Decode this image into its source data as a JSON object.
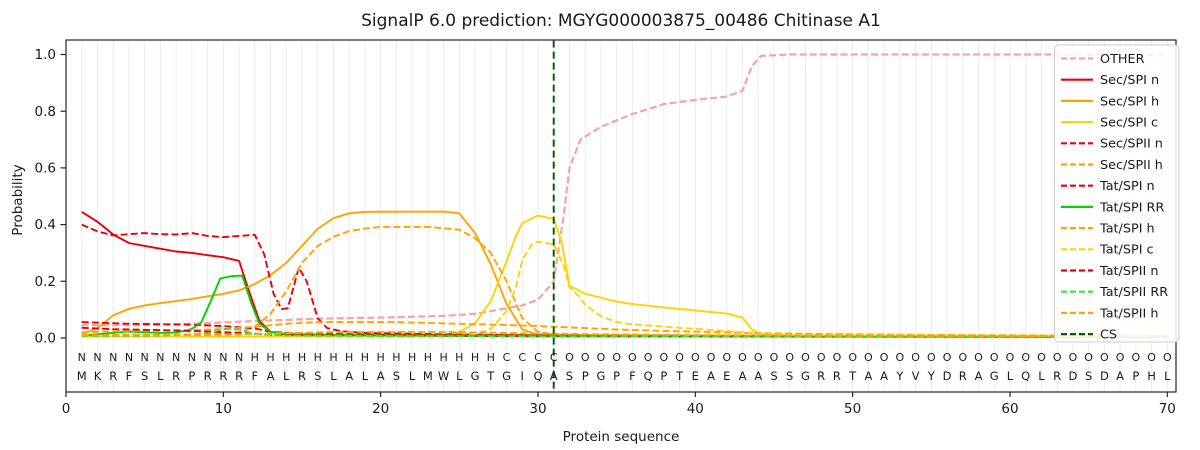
{
  "figure": {
    "title": "SignalP 6.0 prediction: MGYG000003875_00486 Chitinase A1",
    "xlabel": "Protein sequence",
    "ylabel": "Probability"
  },
  "chart_data": {
    "type": "line",
    "title": "SignalP 6.0 prediction: MGYG000003875_00486 Chitinase A1",
    "xlabel": "Protein sequence",
    "ylabel": "Probability",
    "xlim": [
      0,
      70.5
    ],
    "ylim": [
      0.0,
      1.0
    ],
    "xticks": [
      0,
      10,
      20,
      30,
      40,
      50,
      60,
      70
    ],
    "yticks": [
      "0.0",
      "0.2",
      "0.4",
      "0.6",
      "0.8",
      "1.0"
    ],
    "grid": "vertical line per residue, light gray",
    "legend_position": "upper right",
    "cs_position": 31,
    "sequence": "MKRFSLRPRRRFALRSLALASLMWLGTGIQASPGPFQPTEAEAASSGRRTAAYVYDRAGLQLRDSDAPHL",
    "regions": [
      {
        "label": "N",
        "start": 1,
        "end": 11,
        "color": "#e8000b"
      },
      {
        "label": "H",
        "start": 12,
        "end": 27,
        "color": "#ffa300"
      },
      {
        "label": "C",
        "start": 28,
        "end": 31,
        "color": "#ffd300"
      },
      {
        "label": "O",
        "start": 32,
        "end": 70,
        "color": "#8f8f8f"
      }
    ],
    "sequence_color": "#3c3c3c",
    "series": [
      {
        "name": "OTHER",
        "color": "#f4a4a4",
        "dash": true,
        "width": 2.2,
        "points": [
          [
            1,
            0.045
          ],
          [
            4,
            0.045
          ],
          [
            8,
            0.05
          ],
          [
            12,
            0.06
          ],
          [
            16,
            0.068
          ],
          [
            20,
            0.072
          ],
          [
            24,
            0.078
          ],
          [
            26,
            0.085
          ],
          [
            28,
            0.105
          ],
          [
            29,
            0.115
          ],
          [
            30,
            0.135
          ],
          [
            31,
            0.2
          ],
          [
            31.6,
            0.42
          ],
          [
            32,
            0.6
          ],
          [
            32.7,
            0.7
          ],
          [
            34,
            0.745
          ],
          [
            36,
            0.79
          ],
          [
            38,
            0.825
          ],
          [
            40,
            0.84
          ],
          [
            42,
            0.852
          ],
          [
            43,
            0.872
          ],
          [
            43.6,
            0.96
          ],
          [
            44.2,
            0.995
          ],
          [
            46,
            1.0
          ],
          [
            70,
            1.0
          ]
        ]
      },
      {
        "name": "Sec/SPI n",
        "color": "#e8000b",
        "dash": false,
        "width": 1.9,
        "points": [
          [
            1,
            0.445
          ],
          [
            2,
            0.41
          ],
          [
            3,
            0.365
          ],
          [
            4,
            0.335
          ],
          [
            5,
            0.325
          ],
          [
            6,
            0.315
          ],
          [
            7,
            0.305
          ],
          [
            8,
            0.3
          ],
          [
            9,
            0.292
          ],
          [
            10,
            0.285
          ],
          [
            11,
            0.272
          ],
          [
            11.6,
            0.17
          ],
          [
            12.3,
            0.06
          ],
          [
            13,
            0.022
          ],
          [
            14,
            0.012
          ],
          [
            18,
            0.008
          ],
          [
            30,
            0.006
          ],
          [
            70,
            0.004
          ]
        ]
      },
      {
        "name": "Sec/SPI h",
        "color": "#ffa300",
        "dash": false,
        "width": 1.9,
        "points": [
          [
            1,
            0.012
          ],
          [
            2,
            0.035
          ],
          [
            3,
            0.08
          ],
          [
            4,
            0.103
          ],
          [
            5,
            0.115
          ],
          [
            6,
            0.123
          ],
          [
            7,
            0.13
          ],
          [
            8,
            0.138
          ],
          [
            9,
            0.147
          ],
          [
            10,
            0.156
          ],
          [
            11,
            0.168
          ],
          [
            12,
            0.19
          ],
          [
            13,
            0.222
          ],
          [
            14,
            0.265
          ],
          [
            15,
            0.325
          ],
          [
            16,
            0.385
          ],
          [
            17,
            0.423
          ],
          [
            18,
            0.44
          ],
          [
            19,
            0.445
          ],
          [
            24,
            0.446
          ],
          [
            25,
            0.44
          ],
          [
            26,
            0.37
          ],
          [
            27,
            0.26
          ],
          [
            28,
            0.12
          ],
          [
            29,
            0.03
          ],
          [
            30,
            0.012
          ],
          [
            33,
            0.008
          ],
          [
            70,
            0.005
          ]
        ]
      },
      {
        "name": "Sec/SPI c",
        "color": "#ffd300",
        "dash": false,
        "width": 1.9,
        "points": [
          [
            1,
            0.005
          ],
          [
            22,
            0.005
          ],
          [
            24,
            0.01
          ],
          [
            25,
            0.022
          ],
          [
            26,
            0.052
          ],
          [
            27,
            0.13
          ],
          [
            28,
            0.27
          ],
          [
            28.6,
            0.36
          ],
          [
            29,
            0.405
          ],
          [
            30,
            0.432
          ],
          [
            31,
            0.42
          ],
          [
            31.5,
            0.34
          ],
          [
            32,
            0.185
          ],
          [
            33,
            0.156
          ],
          [
            34,
            0.142
          ],
          [
            35,
            0.128
          ],
          [
            36,
            0.12
          ],
          [
            38,
            0.108
          ],
          [
            40,
            0.097
          ],
          [
            42,
            0.086
          ],
          [
            43,
            0.072
          ],
          [
            43.6,
            0.03
          ],
          [
            44.2,
            0.012
          ],
          [
            46,
            0.008
          ],
          [
            70,
            0.007
          ]
        ]
      },
      {
        "name": "Sec/SPII n",
        "color": "#e8000b",
        "dash": true,
        "width": 1.9,
        "points": [
          [
            1,
            0.4
          ],
          [
            2,
            0.376
          ],
          [
            3,
            0.362
          ],
          [
            4,
            0.366
          ],
          [
            5,
            0.37
          ],
          [
            6,
            0.366
          ],
          [
            7,
            0.365
          ],
          [
            8,
            0.37
          ],
          [
            9,
            0.36
          ],
          [
            10,
            0.356
          ],
          [
            11,
            0.36
          ],
          [
            12,
            0.364
          ],
          [
            12.6,
            0.295
          ],
          [
            13.2,
            0.155
          ],
          [
            13.7,
            0.102
          ],
          [
            14.1,
            0.105
          ],
          [
            14.8,
            0.248
          ],
          [
            15.3,
            0.2
          ],
          [
            16,
            0.07
          ],
          [
            16.6,
            0.035
          ],
          [
            17.5,
            0.024
          ],
          [
            19,
            0.018
          ],
          [
            24,
            0.013
          ],
          [
            30,
            0.01
          ],
          [
            40,
            0.007
          ],
          [
            70,
            0.005
          ]
        ]
      },
      {
        "name": "Sec/SPII h",
        "color": "#ffa300",
        "dash": true,
        "width": 1.9,
        "points": [
          [
            1,
            0.01
          ],
          [
            9,
            0.012
          ],
          [
            11,
            0.02
          ],
          [
            12,
            0.04
          ],
          [
            13,
            0.085
          ],
          [
            14,
            0.165
          ],
          [
            15,
            0.265
          ],
          [
            16,
            0.325
          ],
          [
            17,
            0.357
          ],
          [
            18,
            0.377
          ],
          [
            19,
            0.386
          ],
          [
            20,
            0.392
          ],
          [
            23,
            0.392
          ],
          [
            25,
            0.382
          ],
          [
            26,
            0.352
          ],
          [
            27,
            0.3
          ],
          [
            28,
            0.2
          ],
          [
            29,
            0.07
          ],
          [
            30,
            0.022
          ],
          [
            31,
            0.013
          ],
          [
            34,
            0.01
          ],
          [
            70,
            0.006
          ]
        ]
      },
      {
        "name": "Tat/SPI n",
        "color": "#e8000b",
        "dash": true,
        "width": 1.9,
        "points": [
          [
            1,
            0.056
          ],
          [
            4,
            0.05
          ],
          [
            8,
            0.047
          ],
          [
            10,
            0.042
          ],
          [
            12,
            0.034
          ],
          [
            13,
            0.022
          ],
          [
            15,
            0.016
          ],
          [
            20,
            0.012
          ],
          [
            30,
            0.009
          ],
          [
            45,
            0.007
          ],
          [
            70,
            0.005
          ]
        ]
      },
      {
        "name": "Tat/SPI RR",
        "color": "#00d400",
        "dash": false,
        "width": 1.9,
        "points": [
          [
            1,
            0.008
          ],
          [
            2,
            0.013
          ],
          [
            3,
            0.018
          ],
          [
            4,
            0.023
          ],
          [
            5,
            0.02
          ],
          [
            6,
            0.018
          ],
          [
            7,
            0.019
          ],
          [
            8,
            0.032
          ],
          [
            8.6,
            0.055
          ],
          [
            9.2,
            0.13
          ],
          [
            9.8,
            0.21
          ],
          [
            10.5,
            0.218
          ],
          [
            11.2,
            0.22
          ],
          [
            11.8,
            0.12
          ],
          [
            12.3,
            0.05
          ],
          [
            13,
            0.022
          ],
          [
            14,
            0.015
          ],
          [
            16,
            0.012
          ],
          [
            20,
            0.01
          ],
          [
            30,
            0.008
          ],
          [
            70,
            0.005
          ]
        ]
      },
      {
        "name": "Tat/SPI h",
        "color": "#ffa300",
        "dash": true,
        "width": 1.9,
        "points": [
          [
            1,
            0.02
          ],
          [
            4,
            0.025
          ],
          [
            8,
            0.028
          ],
          [
            10,
            0.031
          ],
          [
            12,
            0.04
          ],
          [
            14,
            0.05
          ],
          [
            16,
            0.056
          ],
          [
            21,
            0.056
          ],
          [
            25,
            0.05
          ],
          [
            28,
            0.046
          ],
          [
            31,
            0.04
          ],
          [
            33,
            0.035
          ],
          [
            35,
            0.03
          ],
          [
            38,
            0.025
          ],
          [
            41,
            0.021
          ],
          [
            44,
            0.017
          ],
          [
            48,
            0.014
          ],
          [
            55,
            0.011
          ],
          [
            62,
            0.009
          ],
          [
            70,
            0.008
          ]
        ]
      },
      {
        "name": "Tat/SPI c",
        "color": "#ffd300",
        "dash": true,
        "width": 1.9,
        "points": [
          [
            1,
            0.005
          ],
          [
            23,
            0.005
          ],
          [
            25,
            0.007
          ],
          [
            26,
            0.013
          ],
          [
            27,
            0.032
          ],
          [
            28,
            0.095
          ],
          [
            28.6,
            0.18
          ],
          [
            29,
            0.275
          ],
          [
            29.6,
            0.33
          ],
          [
            30,
            0.34
          ],
          [
            31,
            0.33
          ],
          [
            31.6,
            0.26
          ],
          [
            32,
            0.18
          ],
          [
            32.6,
            0.147
          ],
          [
            33,
            0.117
          ],
          [
            34,
            0.077
          ],
          [
            35,
            0.056
          ],
          [
            36,
            0.048
          ],
          [
            38,
            0.04
          ],
          [
            40,
            0.032
          ],
          [
            42,
            0.025
          ],
          [
            43,
            0.02
          ],
          [
            44,
            0.015
          ],
          [
            46,
            0.011
          ],
          [
            52,
            0.009
          ],
          [
            70,
            0.007
          ]
        ]
      },
      {
        "name": "Tat/SPII n",
        "color": "#e8000b",
        "dash": true,
        "width": 1.9,
        "points": [
          [
            1,
            0.036
          ],
          [
            3,
            0.031
          ],
          [
            6,
            0.028
          ],
          [
            9,
            0.023
          ],
          [
            11,
            0.018
          ],
          [
            13,
            0.012
          ],
          [
            16,
            0.01
          ],
          [
            24,
            0.008
          ],
          [
            40,
            0.006
          ],
          [
            70,
            0.004
          ]
        ]
      },
      {
        "name": "Tat/SPII RR",
        "color": "#3ae43a",
        "dash": true,
        "width": 1.9,
        "points": [
          [
            1,
            0.007
          ],
          [
            6,
            0.008
          ],
          [
            9,
            0.016
          ],
          [
            10,
            0.032
          ],
          [
            11,
            0.03
          ],
          [
            12,
            0.014
          ],
          [
            14,
            0.009
          ],
          [
            20,
            0.007
          ],
          [
            40,
            0.005
          ],
          [
            70,
            0.004
          ]
        ]
      },
      {
        "name": "Tat/SPII h",
        "color": "#ffa300",
        "dash": true,
        "width": 1.9,
        "points": [
          [
            1,
            0.009
          ],
          [
            9,
            0.011
          ],
          [
            13,
            0.016
          ],
          [
            17,
            0.021
          ],
          [
            21,
            0.022
          ],
          [
            26,
            0.02
          ],
          [
            30,
            0.016
          ],
          [
            34,
            0.013
          ],
          [
            40,
            0.01
          ],
          [
            48,
            0.008
          ],
          [
            60,
            0.007
          ],
          [
            70,
            0.006
          ]
        ]
      },
      {
        "name": "CS",
        "color": "#006400",
        "dash": true,
        "width": 2,
        "vline": 31
      }
    ]
  }
}
